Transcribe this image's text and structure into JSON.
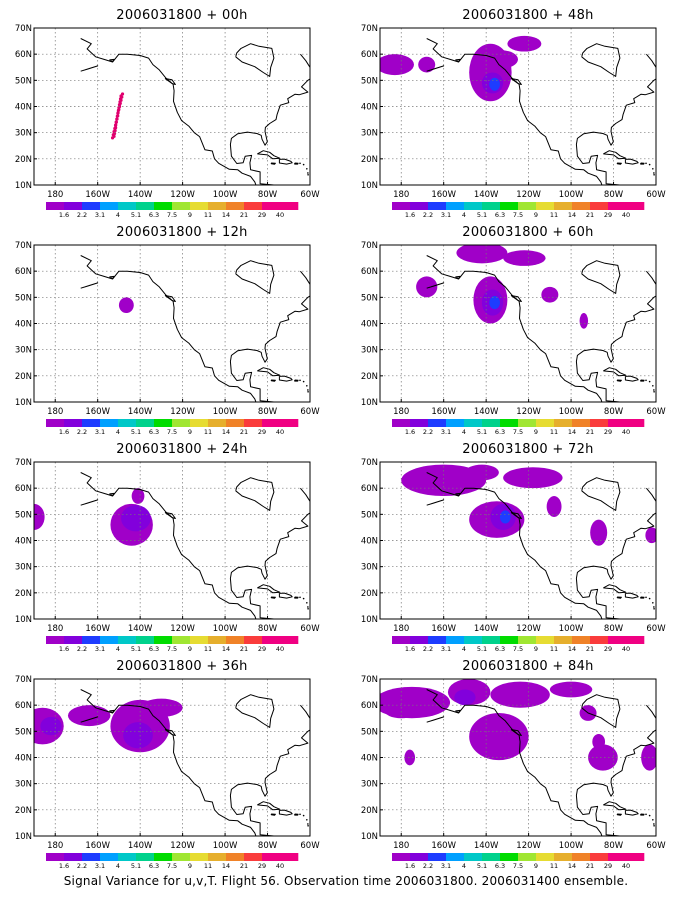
{
  "caption": "Signal Variance for u,v,T. Flight 56. Observation time 2006031800. 2006031400 ensemble.",
  "axes": {
    "lon_labels": [
      "180",
      "160W",
      "140W",
      "120W",
      "100W",
      "80W",
      "60W"
    ],
    "lat_labels": [
      "70N",
      "60N",
      "50N",
      "40N",
      "30N",
      "20N",
      "10N"
    ]
  },
  "colorbar": {
    "labels": [
      "1.6",
      "2.2",
      "3.1",
      "4",
      "5.1",
      "6.3",
      "7.5",
      "9",
      "11",
      "14",
      "21",
      "29",
      "40"
    ],
    "colors": [
      "#a000c8",
      "#8200dc",
      "#1e3cff",
      "#00a0ff",
      "#00c8c8",
      "#00d28c",
      "#00dc00",
      "#a0e632",
      "#e6dc32",
      "#e6af2d",
      "#f08228",
      "#fa3c3c",
      "#f00082",
      "#f00082"
    ]
  },
  "map_extent": {
    "lon": [
      -190,
      -60
    ],
    "lat": [
      10,
      70
    ]
  },
  "panels": [
    {
      "title": "2006031800 + 00h"
    },
    {
      "title": "2006031800 + 12h"
    },
    {
      "title": "2006031800 + 24h"
    },
    {
      "title": "2006031800 + 36h"
    },
    {
      "title": "2006031800 + 48h"
    },
    {
      "title": "2006031800 + 60h"
    },
    {
      "title": "2006031800 + 72h"
    },
    {
      "title": "2006031800 + 84h"
    }
  ]
}
